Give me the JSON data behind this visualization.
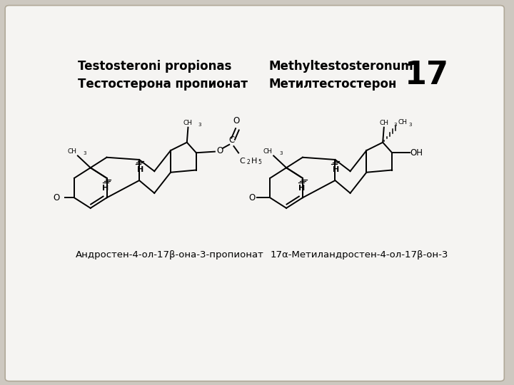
{
  "bg_color": "#cdc8c0",
  "card_color": "#f5f4f2",
  "card_border_color": "#b0a898",
  "page_number": "17",
  "page_num_fontsize": 32,
  "title1_line1": "Testosteroni propionas",
  "title1_line2": "Тестостерона пропионат",
  "title2_line1": "Methyltestosteronum",
  "title2_line2": "Метилтестостерон",
  "caption1": "Андростен-4-ол-17β-она-3-пропионат",
  "caption2": "17α-Метиландростен-4-ол-17β-он-3",
  "title_fontsize": 12,
  "caption_fontsize": 9.5,
  "text_color": "#000000",
  "lw": 1.4
}
